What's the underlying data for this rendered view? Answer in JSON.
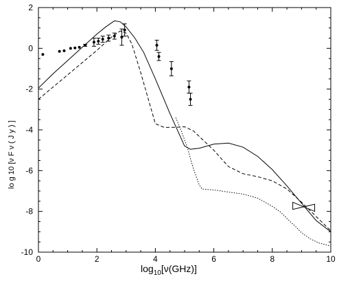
{
  "chart_data": {
    "type": "line",
    "xlabel": "log",
    "xlabel_sub": "10",
    "xlabel_rest": "[ν(GHz)]",
    "ylabel": "log₁₀[νFν(Jy)]",
    "ylabel_display": "lo g 10 [ν F ν ( J y ) ]",
    "xlim": [
      0,
      10
    ],
    "ylim": [
      -10,
      2
    ],
    "xticks": [
      0,
      2,
      4,
      6,
      8,
      10
    ],
    "yticks": [
      -10,
      -8,
      -6,
      -4,
      -2,
      0,
      2
    ],
    "x_tick_labels": [
      "0",
      "2",
      "4",
      "6",
      "8",
      "10"
    ],
    "y_tick_labels": [
      "-10",
      "-8",
      "-6",
      "-4",
      "-2",
      "0",
      "2"
    ],
    "grid": false,
    "series": [
      {
        "style": "solid",
        "x": [
          0,
          0.5,
          1.0,
          1.5,
          2.0,
          2.3,
          2.6,
          2.8,
          3.0,
          3.3,
          3.6,
          4.0,
          4.5,
          5.0,
          5.2,
          5.5,
          6.0,
          6.5,
          7.0,
          7.5,
          8.0,
          8.5,
          9.0,
          9.5,
          10.0
        ],
        "y": [
          -1.95,
          -1.25,
          -0.6,
          0.05,
          0.7,
          1.05,
          1.35,
          1.3,
          1.05,
          0.5,
          -0.2,
          -1.5,
          -3.2,
          -4.8,
          -4.95,
          -4.9,
          -4.7,
          -4.65,
          -4.85,
          -5.3,
          -5.95,
          -6.75,
          -7.6,
          -8.45,
          -9.0
        ]
      },
      {
        "style": "dashed",
        "x": [
          0,
          0.5,
          1.0,
          1.5,
          2.0,
          2.5,
          2.8,
          3.0,
          3.2,
          3.5,
          4.0,
          4.3,
          4.6,
          5.0,
          5.3,
          6.0,
          6.5,
          7.0,
          7.5,
          8.0,
          8.5,
          9.0,
          9.5,
          10.0
        ],
        "y": [
          -2.5,
          -1.9,
          -1.3,
          -0.7,
          -0.1,
          0.55,
          0.85,
          0.75,
          0.2,
          -1.2,
          -3.7,
          -3.88,
          -3.88,
          -3.85,
          -4.05,
          -5.0,
          -5.8,
          -6.15,
          -6.3,
          -6.5,
          -6.9,
          -7.55,
          -8.25,
          -8.95
        ]
      },
      {
        "style": "dotted",
        "x": [
          4.7,
          4.9,
          5.1,
          5.3,
          5.5,
          5.6,
          6.0,
          6.5,
          7.0,
          7.5,
          8.0,
          8.3,
          8.5,
          8.8,
          9.0,
          9.3,
          9.6,
          10.0
        ],
        "y": [
          -3.4,
          -4.1,
          -4.9,
          -5.9,
          -6.7,
          -6.9,
          -6.95,
          -7.05,
          -7.15,
          -7.35,
          -7.75,
          -8.05,
          -8.35,
          -8.75,
          -9.05,
          -9.35,
          -9.55,
          -9.7
        ]
      }
    ],
    "data_points": {
      "x": [
        0.15,
        0.72,
        0.88,
        1.1,
        1.25,
        1.4,
        1.6,
        1.9,
        2.05,
        2.2,
        2.4,
        2.6,
        2.85,
        2.95,
        4.05,
        4.12,
        4.55,
        5.15,
        5.2
      ],
      "y": [
        -0.3,
        -0.15,
        -0.12,
        0.0,
        0.02,
        0.05,
        0.15,
        0.3,
        0.35,
        0.45,
        0.5,
        0.6,
        0.55,
        0.9,
        0.15,
        -0.4,
        -1.0,
        -1.9,
        -2.5
      ],
      "yerr": [
        0.0,
        0.0,
        0.0,
        0.0,
        0.0,
        0.0,
        0.05,
        0.2,
        0.15,
        0.15,
        0.15,
        0.15,
        0.4,
        0.3,
        0.25,
        0.2,
        0.35,
        0.3,
        0.3
      ]
    },
    "bowtie": {
      "x": [
        8.7,
        9.45
      ],
      "upper_y": [
        -7.55,
        -8.0
      ],
      "lower_y": [
        -7.9,
        -7.65
      ]
    }
  }
}
